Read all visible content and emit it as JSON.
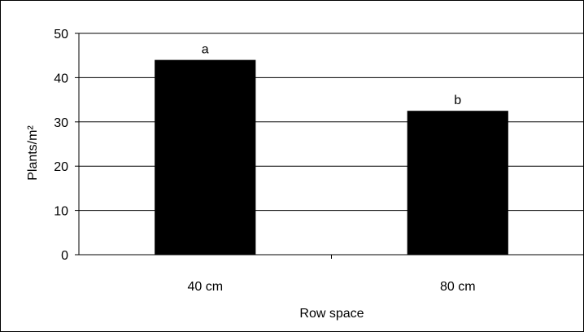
{
  "chart_data": {
    "type": "bar",
    "categories": [
      "40 cm",
      "80 cm"
    ],
    "values": [
      44,
      32.5
    ],
    "data_labels": [
      "a",
      "b"
    ],
    "xlabel": "Row space",
    "ylabel": "Plants/m²",
    "ylim": [
      0,
      50
    ],
    "yticks": [
      0,
      10,
      20,
      30,
      40,
      50
    ],
    "grid": "horizontal",
    "legend": "none",
    "colors": {
      "bar": "#000000",
      "grid": "#000000",
      "background": "#ffffff"
    }
  }
}
